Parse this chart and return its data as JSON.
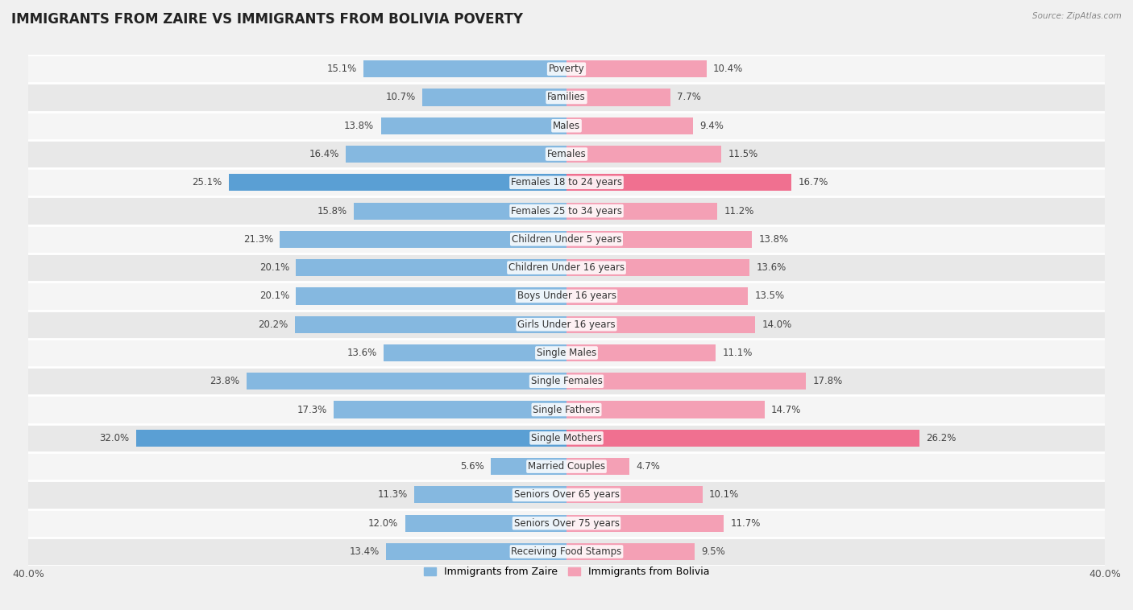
{
  "title": "IMMIGRANTS FROM ZAIRE VS IMMIGRANTS FROM BOLIVIA POVERTY",
  "source": "Source: ZipAtlas.com",
  "categories": [
    "Poverty",
    "Families",
    "Males",
    "Females",
    "Females 18 to 24 years",
    "Females 25 to 34 years",
    "Children Under 5 years",
    "Children Under 16 years",
    "Boys Under 16 years",
    "Girls Under 16 years",
    "Single Males",
    "Single Females",
    "Single Fathers",
    "Single Mothers",
    "Married Couples",
    "Seniors Over 65 years",
    "Seniors Over 75 years",
    "Receiving Food Stamps"
  ],
  "zaire_values": [
    15.1,
    10.7,
    13.8,
    16.4,
    25.1,
    15.8,
    21.3,
    20.1,
    20.1,
    20.2,
    13.6,
    23.8,
    17.3,
    32.0,
    5.6,
    11.3,
    12.0,
    13.4
  ],
  "bolivia_values": [
    10.4,
    7.7,
    9.4,
    11.5,
    16.7,
    11.2,
    13.8,
    13.6,
    13.5,
    14.0,
    11.1,
    17.8,
    14.7,
    26.2,
    4.7,
    10.1,
    11.7,
    9.5
  ],
  "zaire_color": "#85b8e0",
  "bolivia_color": "#f4a0b5",
  "zaire_highlight_color": "#5a9fd4",
  "bolivia_highlight_color": "#f07090",
  "highlight_indices": [
    4,
    13
  ],
  "background_color": "#f0f0f0",
  "row_even_color": "#f5f5f5",
  "row_odd_color": "#e8e8e8",
  "xlim": 40.0,
  "legend_zaire": "Immigrants from Zaire",
  "legend_bolivia": "Immigrants from Bolivia",
  "title_fontsize": 12,
  "label_fontsize": 8.5,
  "value_fontsize": 8.5
}
